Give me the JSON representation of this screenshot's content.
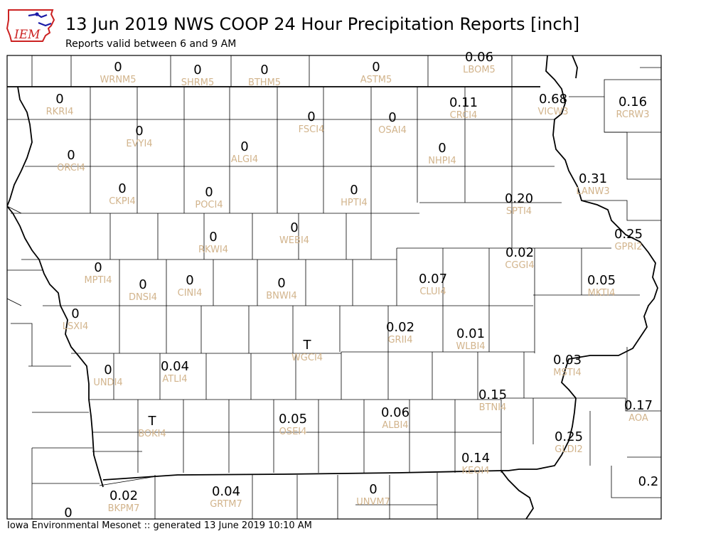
{
  "header": {
    "logo_text": "IEM",
    "title": "13 Jun 2019 NWS COOP 24 Hour Precipitation Reports [inch]",
    "subtitle": "Reports valid between 6 and 9 AM"
  },
  "footer": {
    "text": "Iowa Environmental Mesonet :: generated 13 June 2019 10:10 AM"
  },
  "colors": {
    "value_text": "#000000",
    "station_id_text": "#d2b48c",
    "county_lines": "#000000",
    "logo_red": "#cc2222",
    "logo_blue": "#1a1aa6"
  },
  "stations": [
    {
      "id": "WRNM5",
      "value": "0"
    },
    {
      "id": "SHRM5",
      "value": "0"
    },
    {
      "id": "BTHM5",
      "value": "0"
    },
    {
      "id": "ASTM5",
      "value": "0"
    },
    {
      "id": "LBOM5",
      "value": "0.06"
    },
    {
      "id": "RKRI4",
      "value": "0"
    },
    {
      "id": "EVYI4",
      "value": "0"
    },
    {
      "id": "FSCI4",
      "value": "0"
    },
    {
      "id": "OSAI4",
      "value": "0"
    },
    {
      "id": "CRCI4",
      "value": "0.11"
    },
    {
      "id": "VICW3",
      "value": "0.68"
    },
    {
      "id": "RCRW3",
      "value": "0.16"
    },
    {
      "id": "ORCI4",
      "value": "0"
    },
    {
      "id": "ALGI4",
      "value": "0"
    },
    {
      "id": "NHPI4",
      "value": "0"
    },
    {
      "id": "CKPI4",
      "value": "0"
    },
    {
      "id": "POCI4",
      "value": "0"
    },
    {
      "id": "HPTI4",
      "value": "0"
    },
    {
      "id": "SPTI4",
      "value": "0.20"
    },
    {
      "id": "LANW3",
      "value": "0.31"
    },
    {
      "id": "RKWI4",
      "value": "0"
    },
    {
      "id": "WEBI4",
      "value": "0"
    },
    {
      "id": "GPRI2",
      "value": "0.25"
    },
    {
      "id": "CGGI4",
      "value": "0.02"
    },
    {
      "id": "MPTI4",
      "value": "0"
    },
    {
      "id": "DNSI4",
      "value": "0"
    },
    {
      "id": "CINI4",
      "value": "0"
    },
    {
      "id": "BNWI4",
      "value": "0"
    },
    {
      "id": "CLUI4",
      "value": "0.07"
    },
    {
      "id": "MKTI4",
      "value": "0.05"
    },
    {
      "id": "LSXI4",
      "value": "0"
    },
    {
      "id": "GRII4",
      "value": "0.02"
    },
    {
      "id": "WLBI4",
      "value": "0.01"
    },
    {
      "id": "WGCI4",
      "value": "T"
    },
    {
      "id": "MSTI4",
      "value": "0.03"
    },
    {
      "id": "UNDI4",
      "value": "0"
    },
    {
      "id": "ATLI4",
      "value": "0.04"
    },
    {
      "id": "BTNI4",
      "value": "0.15"
    },
    {
      "id": "AOA",
      "value": "0.17"
    },
    {
      "id": "BOKI4",
      "value": "T"
    },
    {
      "id": "OSEI4",
      "value": "0.05"
    },
    {
      "id": "ALBI4",
      "value": "0.06"
    },
    {
      "id": "GLDI2",
      "value": "0.25"
    },
    {
      "id": "KEOI4",
      "value": "0.14"
    },
    {
      "id": "BKPM7",
      "value": "0.02"
    },
    {
      "id": "GRTM7",
      "value": "0.04"
    },
    {
      "id": "UNVM7",
      "value": "0"
    },
    {
      "id": "",
      "value": "0.2"
    },
    {
      "id": "",
      "value": "0"
    }
  ]
}
